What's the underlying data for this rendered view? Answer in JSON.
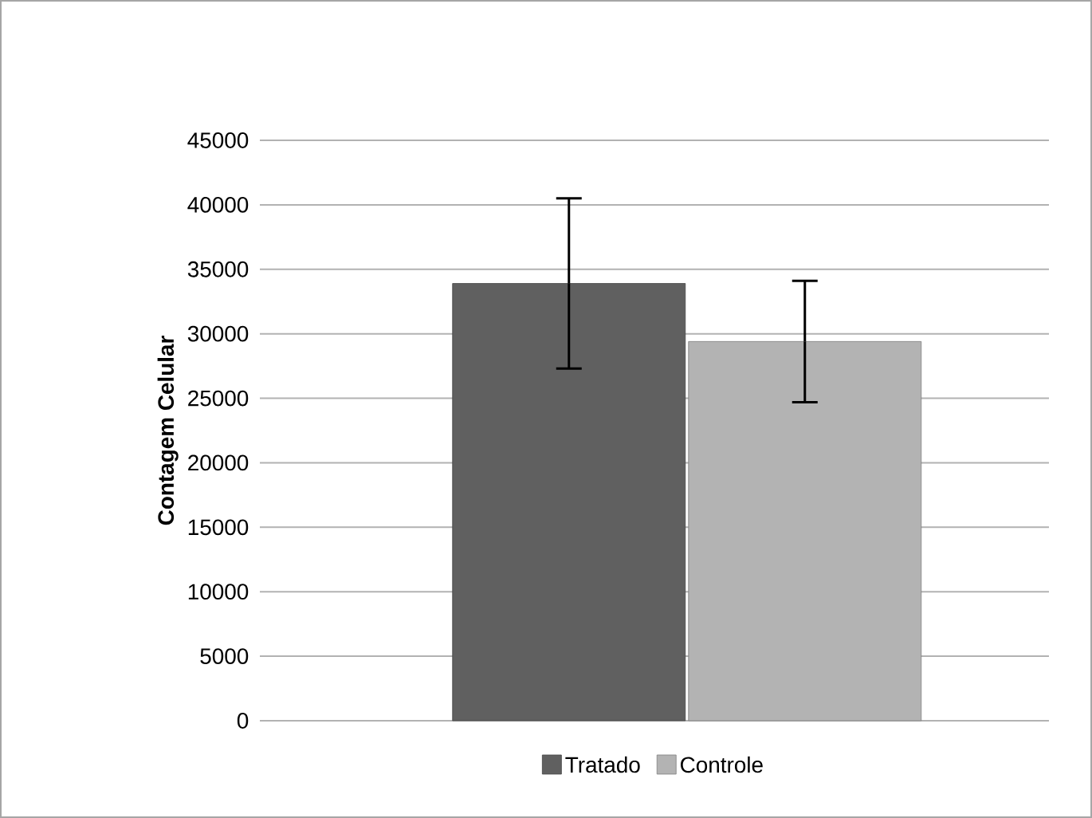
{
  "chart_data": {
    "type": "bar",
    "ylabel": "Contagem Celular",
    "categories": [
      null
    ],
    "series": [
      {
        "name": "Tratado",
        "color": "#606060",
        "values": [
          33900
        ],
        "errors": [
          6600
        ]
      },
      {
        "name": "Controle",
        "color": "#b3b3b3",
        "values": [
          29400
        ],
        "errors": [
          4700
        ]
      }
    ],
    "ylim": [
      0,
      45000
    ],
    "yticks": [
      0,
      5000,
      10000,
      15000,
      20000,
      25000,
      30000,
      35000,
      40000,
      45000
    ],
    "grid": "y",
    "legend": "bottom"
  }
}
